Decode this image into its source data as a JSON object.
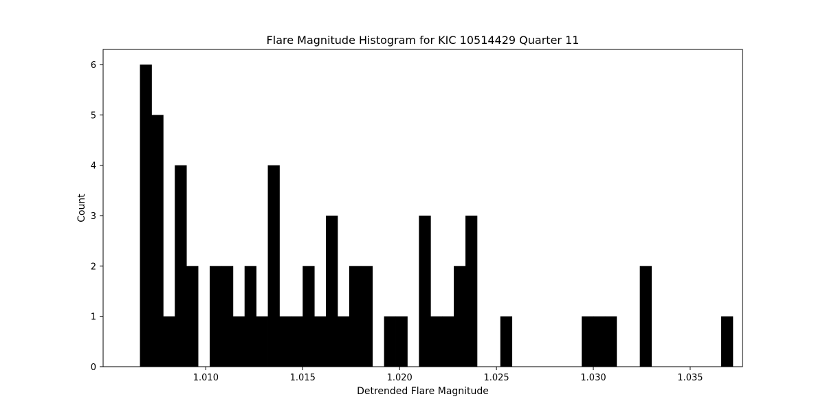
{
  "chart_data": {
    "type": "bar",
    "title": "Flare Magnitude Histogram for KIC 10514429 Quarter 11",
    "xlabel": "Detrended Flare Magnitude",
    "ylabel": "Count",
    "xlim": [
      1.0047,
      1.0377
    ],
    "ylim": [
      0,
      6.3
    ],
    "xticks": [
      {
        "value": 1.01,
        "label": "1.010"
      },
      {
        "value": 1.015,
        "label": "1.015"
      },
      {
        "value": 1.02,
        "label": "1.020"
      },
      {
        "value": 1.025,
        "label": "1.025"
      },
      {
        "value": 1.03,
        "label": "1.030"
      },
      {
        "value": 1.035,
        "label": "1.035"
      }
    ],
    "yticks": [
      {
        "value": 0,
        "label": "0"
      },
      {
        "value": 1,
        "label": "1"
      },
      {
        "value": 2,
        "label": "2"
      },
      {
        "value": 3,
        "label": "3"
      },
      {
        "value": 4,
        "label": "4"
      },
      {
        "value": 5,
        "label": "5"
      },
      {
        "value": 6,
        "label": "6"
      }
    ],
    "bin_start": 1.0066,
    "bin_width": 0.0006,
    "counts": [
      6,
      5,
      1,
      4,
      2,
      0,
      2,
      2,
      1,
      2,
      1,
      4,
      1,
      1,
      2,
      1,
      3,
      1,
      2,
      2,
      0,
      1,
      1,
      0,
      3,
      1,
      1,
      2,
      3,
      0,
      0,
      1,
      0,
      0,
      0,
      0,
      0,
      0,
      1,
      1,
      1,
      0,
      0,
      2,
      0,
      0,
      0,
      0,
      0,
      0,
      1
    ],
    "bar_color": "#000000",
    "grid": false,
    "legend": "none"
  }
}
